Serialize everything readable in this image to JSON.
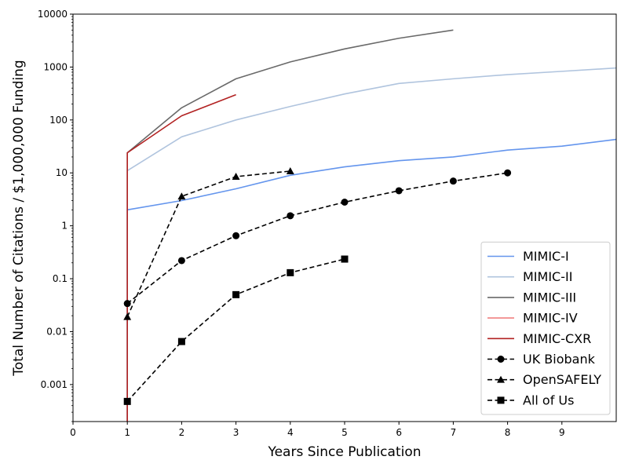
{
  "chart_data": {
    "type": "line",
    "title": "",
    "xlabel": "Years Since Publication",
    "ylabel": "Total Number of Citations / $1,000,000 Funding",
    "xlim": [
      0,
      10
    ],
    "ylim": [
      0.0002,
      10000
    ],
    "yscale": "log",
    "grid": false,
    "legend": "bottom-right",
    "x_ticks": [
      "0",
      "1",
      "2",
      "3",
      "4",
      "5",
      "6",
      "7",
      "8",
      "9"
    ],
    "y_ticks": [
      "0.001",
      "0.01",
      "0.1",
      "1",
      "10",
      "100",
      "1000",
      "10000"
    ],
    "series": [
      {
        "name": "MIMIC-I",
        "color": "#6495ed",
        "dashed": false,
        "marker": "none",
        "x": [
          1,
          1,
          2,
          3,
          4,
          5,
          6,
          7,
          8,
          9,
          10
        ],
        "y": [
          0.0002,
          2,
          3,
          5,
          9,
          13,
          17,
          20,
          27,
          32,
          43
        ]
      },
      {
        "name": "MIMIC-II",
        "color": "#b0c4de",
        "dashed": false,
        "marker": "none",
        "x": [
          1,
          1,
          2,
          3,
          4,
          5,
          6,
          7,
          8,
          9,
          10
        ],
        "y": [
          0.0002,
          11,
          48,
          100,
          180,
          310,
          490,
          600,
          720,
          830,
          960
        ]
      },
      {
        "name": "MIMIC-III",
        "color": "#696969",
        "dashed": false,
        "marker": "none",
        "x": [
          1,
          1,
          2,
          3,
          4,
          5,
          6,
          7
        ],
        "y": [
          0.0002,
          24,
          170,
          600,
          1250,
          2200,
          3500,
          5000
        ]
      },
      {
        "name": "MIMIC-IV",
        "color": "#f08080",
        "dashed": false,
        "marker": "none",
        "x": [
          1,
          1
        ],
        "y": [
          0.0002,
          0.0004
        ]
      },
      {
        "name": "MIMIC-CXR",
        "color": "#b22222",
        "dashed": false,
        "marker": "none",
        "x": [
          1,
          1,
          2,
          3
        ],
        "y": [
          0.0002,
          24,
          120,
          300
        ]
      },
      {
        "name": "UK Biobank",
        "color": "#000000",
        "dashed": true,
        "marker": "circle",
        "x": [
          1,
          2,
          3,
          4,
          5,
          6,
          7,
          8
        ],
        "y": [
          0.034,
          0.22,
          0.65,
          1.55,
          2.8,
          4.6,
          7,
          10
        ]
      },
      {
        "name": "OpenSAFELY",
        "color": "#000000",
        "dashed": true,
        "marker": "triangle",
        "x": [
          1,
          2,
          3,
          4
        ],
        "y": [
          0.019,
          3.6,
          8.5,
          10.8
        ]
      },
      {
        "name": "All of Us",
        "color": "#000000",
        "dashed": true,
        "marker": "square",
        "x": [
          1,
          2,
          3,
          4,
          5
        ],
        "y": [
          0.00048,
          0.0065,
          0.05,
          0.13,
          0.235
        ]
      }
    ]
  }
}
